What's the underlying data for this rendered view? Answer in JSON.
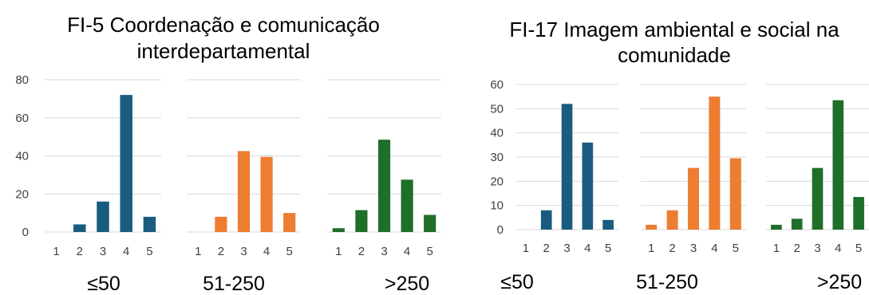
{
  "chart_data": [
    {
      "type": "bar",
      "title_lines": [
        "FI-5 Coordenação e comunicação",
        "interdepartamental"
      ],
      "ylim": [
        0,
        80
      ],
      "yticks": [
        "0",
        "20",
        "40",
        "60",
        "80"
      ],
      "categories": [
        "1",
        "2",
        "3",
        "4",
        "5"
      ],
      "series": [
        {
          "group_label": "≤50",
          "color": "#1a5c80",
          "values": [
            0,
            4,
            16,
            72,
            8
          ]
        },
        {
          "group_label": "51-250",
          "color": "#ed7d31",
          "values": [
            0,
            8,
            42.5,
            39.5,
            10
          ]
        },
        {
          "group_label": ">250",
          "color": "#1f6e2a",
          "values": [
            2,
            11.5,
            48.5,
            27.5,
            9
          ]
        }
      ]
    },
    {
      "type": "bar",
      "title_lines": [
        "FI-17 Imagem ambiental e social na",
        "comunidade"
      ],
      "ylim": [
        0,
        60
      ],
      "yticks": [
        "0",
        "10",
        "20",
        "30",
        "40",
        "50",
        "60"
      ],
      "categories": [
        "1",
        "2",
        "3",
        "4",
        "5"
      ],
      "series": [
        {
          "group_label": "≤50",
          "color": "#1a5c80",
          "values": [
            0,
            8,
            52,
            36,
            4
          ]
        },
        {
          "group_label": "51-250",
          "color": "#ed7d31",
          "values": [
            2,
            8,
            25.5,
            55,
            29.5
          ]
        },
        {
          "group_label": ">250",
          "color": "#1f6e2a",
          "values": [
            2,
            4.5,
            25.5,
            53.5,
            13.5
          ]
        }
      ]
    }
  ]
}
